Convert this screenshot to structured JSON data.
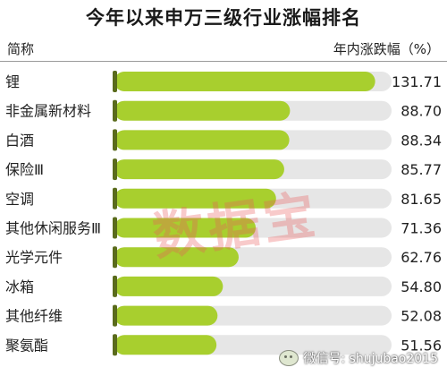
{
  "chart_data": {
    "type": "bar",
    "orientation": "horizontal",
    "title": "今年以来申万三级行业涨幅排名",
    "category_header": "简称",
    "value_header": "年内涨跌幅（%）",
    "categories": [
      "锂",
      "非金属新材料",
      "白酒",
      "保险Ⅲ",
      "空调",
      "其他休闲服务Ⅲ",
      "光学元件",
      "冰箱",
      "其他纤维",
      "聚氨酯"
    ],
    "values": [
      131.71,
      88.7,
      88.34,
      85.77,
      81.65,
      71.36,
      62.76,
      54.8,
      52.08,
      51.56
    ],
    "value_labels": [
      "131.71",
      "88.70",
      "88.34",
      "85.77",
      "81.65",
      "71.36",
      "62.76",
      "54.80",
      "52.08",
      "51.56"
    ],
    "xlim": [
      0,
      140
    ],
    "grid": false,
    "legend": "none"
  },
  "watermark": "数据宝",
  "footer": {
    "wechat_label": "微信号: shujubao2015"
  },
  "colors": {
    "bar_fill": "#a8cf2e",
    "bar_track": "#e6e6e6",
    "bar_cap": "#5a6b1c"
  }
}
